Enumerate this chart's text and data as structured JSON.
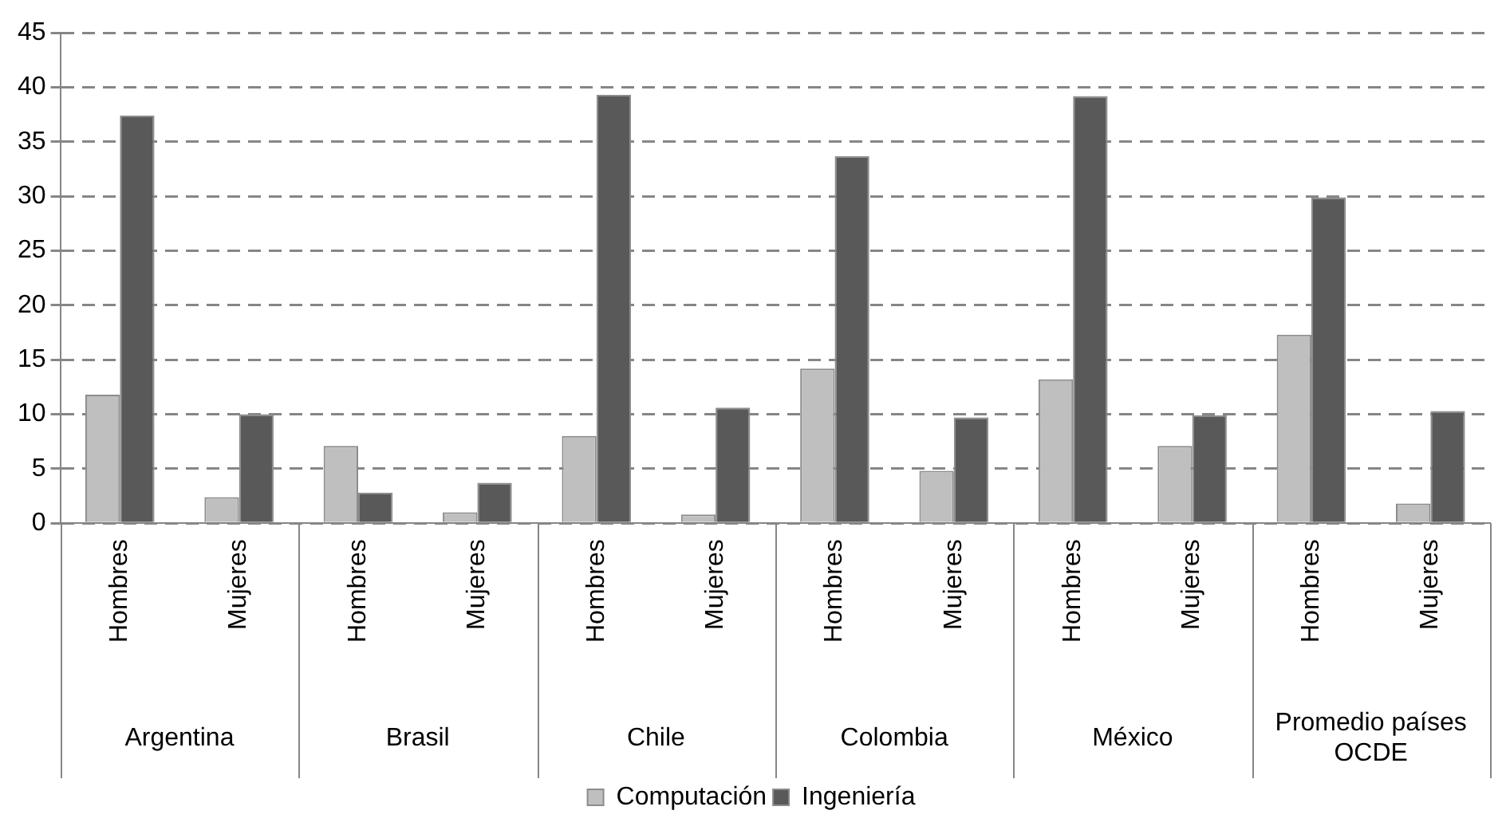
{
  "chart_data": {
    "type": "bar",
    "categories": [
      "Hombres",
      "Mujeres",
      "Hombres",
      "Mujeres",
      "Hombres",
      "Mujeres",
      "Hombres",
      "Mujeres",
      "Hombres",
      "Mujeres",
      "Hombres",
      "Mujeres"
    ],
    "series": [
      {
        "name": "Computación",
        "color": "#bfbfbf",
        "values": [
          11.8,
          2.4,
          7.1,
          1.0,
          8.0,
          0.8,
          14.2,
          4.8,
          13.2,
          7.1,
          17.3,
          1.8
        ]
      },
      {
        "name": "Ingeniería",
        "color": "#595959",
        "values": [
          37.4,
          10.0,
          2.8,
          3.7,
          39.3,
          10.6,
          33.7,
          9.7,
          39.2,
          9.9,
          29.9,
          10.3
        ]
      }
    ],
    "annotations": [
      "Argentina",
      "Brasil",
      "Chile",
      "Colombia",
      "México",
      "Promedio países  OCDE"
    ],
    "ylim": [
      0,
      45
    ],
    "yticks": [
      0,
      5,
      10,
      15,
      20,
      25,
      30,
      35,
      40,
      45
    ],
    "grid": "y",
    "line_style": "dashed",
    "legend": "bottom"
  }
}
